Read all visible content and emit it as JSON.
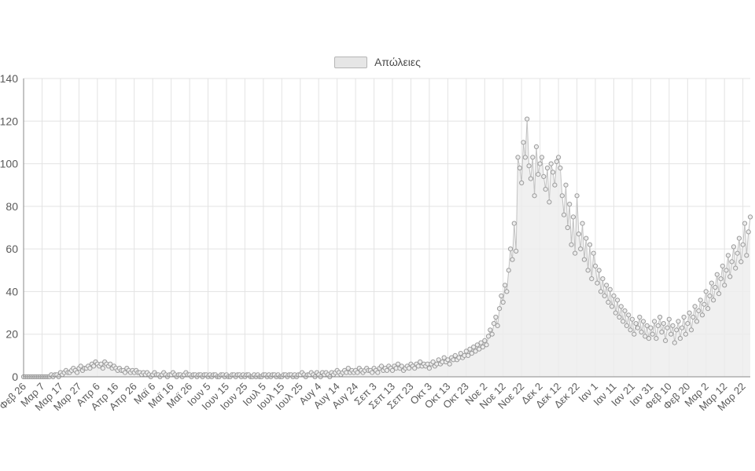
{
  "legend": {
    "label": "Απώλειες"
  },
  "chart_data": {
    "type": "area",
    "title": "",
    "xlabel": "",
    "ylabel": "",
    "grid": true,
    "legend_position": "top-center",
    "ylim": [
      0,
      140
    ],
    "y_ticks": [
      0,
      20,
      40,
      60,
      80,
      100,
      120,
      140
    ],
    "x_tick_step": 10,
    "x_tick_labels": [
      "Φεβ 26",
      "Μαρ 7",
      "Μαρ 17",
      "Μαρ 27",
      "Απρ 6",
      "Απρ 16",
      "Απρ 26",
      "Μαϊ 6",
      "Μαϊ 16",
      "Μαϊ 26",
      "Ιουν 5",
      "Ιουν 15",
      "Ιουν 25",
      "Ιουλ 5",
      "Ιουλ 15",
      "Ιουλ 25",
      "Αυγ 4",
      "Αυγ 14",
      "Αυγ 24",
      "Σεπ 3",
      "Σεπ 13",
      "Σεπ 23",
      "Οκτ 3",
      "Οκτ 13",
      "Οκτ 23",
      "Νοε 2",
      "Νοε 12",
      "Νοε 22",
      "Δεκ 2",
      "Δεκ 12",
      "Δεκ 22",
      "Ιαν 1",
      "Ιαν 11",
      "Ιαν 21",
      "Ιαν 31",
      "Φεβ 10",
      "Φεβ 20",
      "Μαρ 2",
      "Μαρ 12",
      "Μαρ 22"
    ],
    "series": [
      {
        "name": "Απώλειες",
        "values": [
          0,
          0,
          0,
          0,
          0,
          0,
          0,
          0,
          0,
          0,
          0,
          0,
          0,
          0,
          0,
          1,
          0,
          1,
          1,
          0,
          2,
          1,
          2,
          3,
          2,
          2,
          3,
          4,
          3,
          2,
          4,
          5,
          3,
          4,
          4,
          5,
          4,
          6,
          5,
          7,
          6,
          5,
          6,
          4,
          7,
          6,
          5,
          6,
          4,
          5,
          4,
          3,
          4,
          3,
          3,
          2,
          4,
          3,
          2,
          3,
          2,
          3,
          2,
          2,
          1,
          2,
          1,
          2,
          1,
          0,
          1,
          2,
          1,
          1,
          0,
          1,
          2,
          1,
          0,
          1,
          1,
          2,
          1,
          0,
          1,
          1,
          0,
          1,
          2,
          1,
          1,
          0,
          1,
          1,
          0,
          1,
          1,
          0,
          1,
          1,
          0,
          1,
          0,
          1,
          1,
          0,
          0,
          1,
          1,
          0,
          1,
          0,
          0,
          1,
          1,
          0,
          1,
          1,
          0,
          1,
          0,
          1,
          1,
          0,
          0,
          1,
          0,
          1,
          0,
          0,
          1,
          1,
          0,
          1,
          0,
          1,
          1,
          0,
          1,
          0,
          0,
          1,
          1,
          0,
          1,
          1,
          0,
          1,
          0,
          1,
          1,
          2,
          1,
          0,
          1,
          1,
          2,
          1,
          0,
          2,
          1,
          0,
          2,
          1,
          2,
          1,
          0,
          2,
          1,
          2,
          3,
          2,
          1,
          2,
          3,
          2,
          4,
          2,
          3,
          2,
          3,
          2,
          4,
          3,
          2,
          3,
          4,
          3,
          3,
          2,
          4,
          3,
          2,
          4,
          5,
          3,
          4,
          3,
          5,
          4,
          3,
          5,
          4,
          6,
          4,
          5,
          3,
          4,
          5,
          4,
          6,
          5,
          4,
          6,
          5,
          7,
          5,
          6,
          5,
          6,
          4,
          6,
          7,
          5,
          6,
          8,
          6,
          7,
          9,
          7,
          8,
          6,
          9,
          8,
          10,
          8,
          9,
          11,
          9,
          10,
          12,
          10,
          13,
          11,
          14,
          12,
          15,
          13,
          16,
          14,
          17,
          15,
          19,
          22,
          20,
          25,
          28,
          24,
          32,
          38,
          35,
          43,
          40,
          50,
          60,
          55,
          72,
          59,
          103,
          98,
          91,
          110,
          103,
          121,
          99,
          93,
          103,
          85,
          108,
          95,
          100,
          103,
          94,
          88,
          98,
          82,
          100,
          96,
          90,
          101,
          103,
          98,
          85,
          76,
          90,
          70,
          81,
          62,
          75,
          58,
          85,
          67,
          60,
          72,
          55,
          65,
          50,
          62,
          46,
          58,
          52,
          44,
          50,
          40,
          46,
          38,
          43,
          35,
          41,
          33,
          38,
          30,
          36,
          28,
          33,
          26,
          31,
          24,
          29,
          22,
          27,
          20,
          25,
          23,
          28,
          21,
          26,
          19,
          24,
          18,
          23,
          20,
          26,
          18,
          24,
          28,
          21,
          25,
          17,
          23,
          27,
          20,
          24,
          16,
          22,
          26,
          18,
          23,
          28,
          20,
          25,
          30,
          22,
          28,
          33,
          26,
          31,
          36,
          29,
          34,
          40,
          32,
          38,
          44,
          36,
          42,
          48,
          39,
          46,
          52,
          43,
          50,
          57,
          47,
          54,
          61,
          51,
          58,
          65,
          54,
          62,
          72,
          57,
          68,
          75
        ]
      }
    ],
    "colors": {
      "area_fill": "#ececec",
      "line": "#c2c2c2",
      "marker_fill": "#ededed",
      "marker_stroke": "#9b9b9b",
      "grid": "#e3e3e3",
      "axis": "#8a8a8a",
      "tick_text": "#5a5a5a"
    }
  }
}
